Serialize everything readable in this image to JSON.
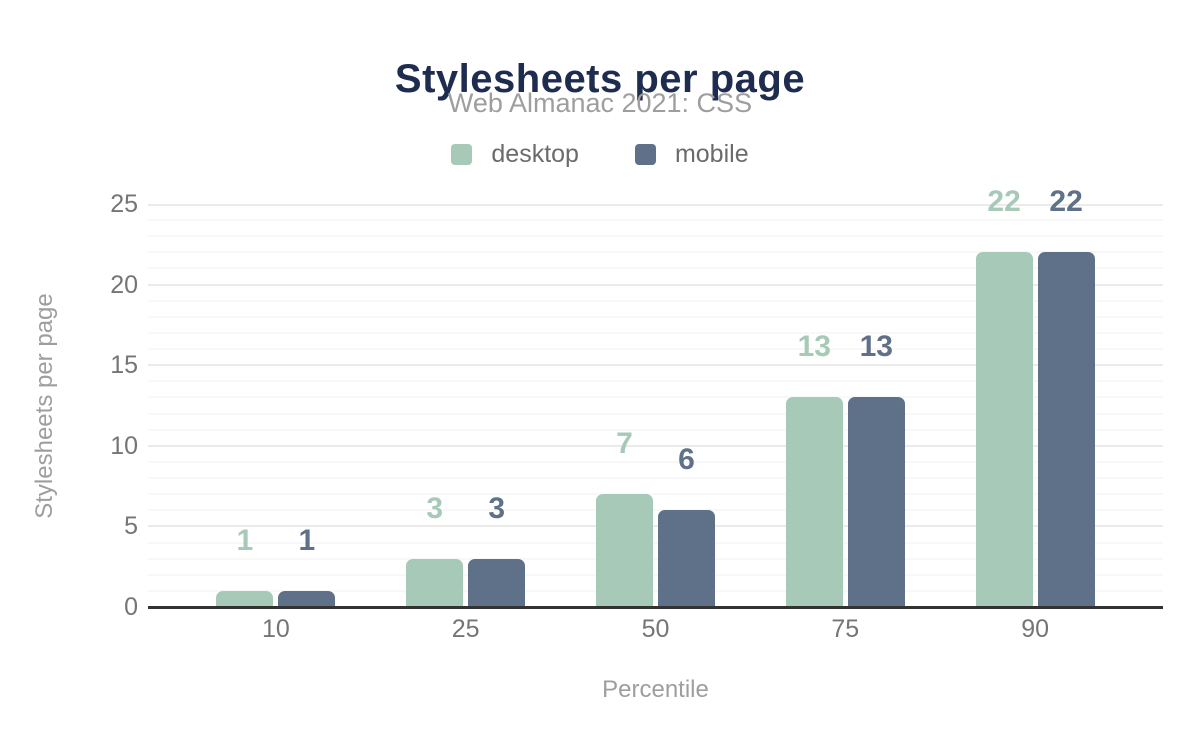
{
  "title": "Stylesheets per page",
  "subtitle": "Web Almanac 2021: CSS",
  "legend": {
    "items": [
      {
        "label": "desktop",
        "color": "#a7c9b8"
      },
      {
        "label": "mobile",
        "color": "#5f7089"
      }
    ]
  },
  "chart_data": {
    "type": "bar",
    "title": "Stylesheets per page",
    "subtitle": "Web Almanac 2021: CSS",
    "categories": [
      "10",
      "25",
      "50",
      "75",
      "90"
    ],
    "series": [
      {
        "name": "desktop",
        "color": "#a7c9b8",
        "values": [
          1,
          3,
          7,
          13,
          22
        ]
      },
      {
        "name": "mobile",
        "color": "#5f7089",
        "values": [
          1,
          3,
          6,
          13,
          22
        ]
      }
    ],
    "xlabel": "Percentile",
    "ylabel": "Stylesheets per page",
    "ylim": [
      0,
      25
    ],
    "yticks": [
      0,
      5,
      10,
      15,
      20,
      25
    ],
    "minor_grid_step": 1,
    "major_grid_step": 5,
    "grid": true,
    "legend_position": "top",
    "data_labels": true
  },
  "colors": {
    "title": "#1e2c4f",
    "subtitle": "#9e9e9e",
    "axis_title": "#9e9e9e",
    "tick_label": "#757575",
    "legend_label": "#6b6b6b",
    "axis_line": "#333333",
    "grid_major": "#ebebeb",
    "grid_minor": "#f8f8f8",
    "background": "#ffffff"
  }
}
